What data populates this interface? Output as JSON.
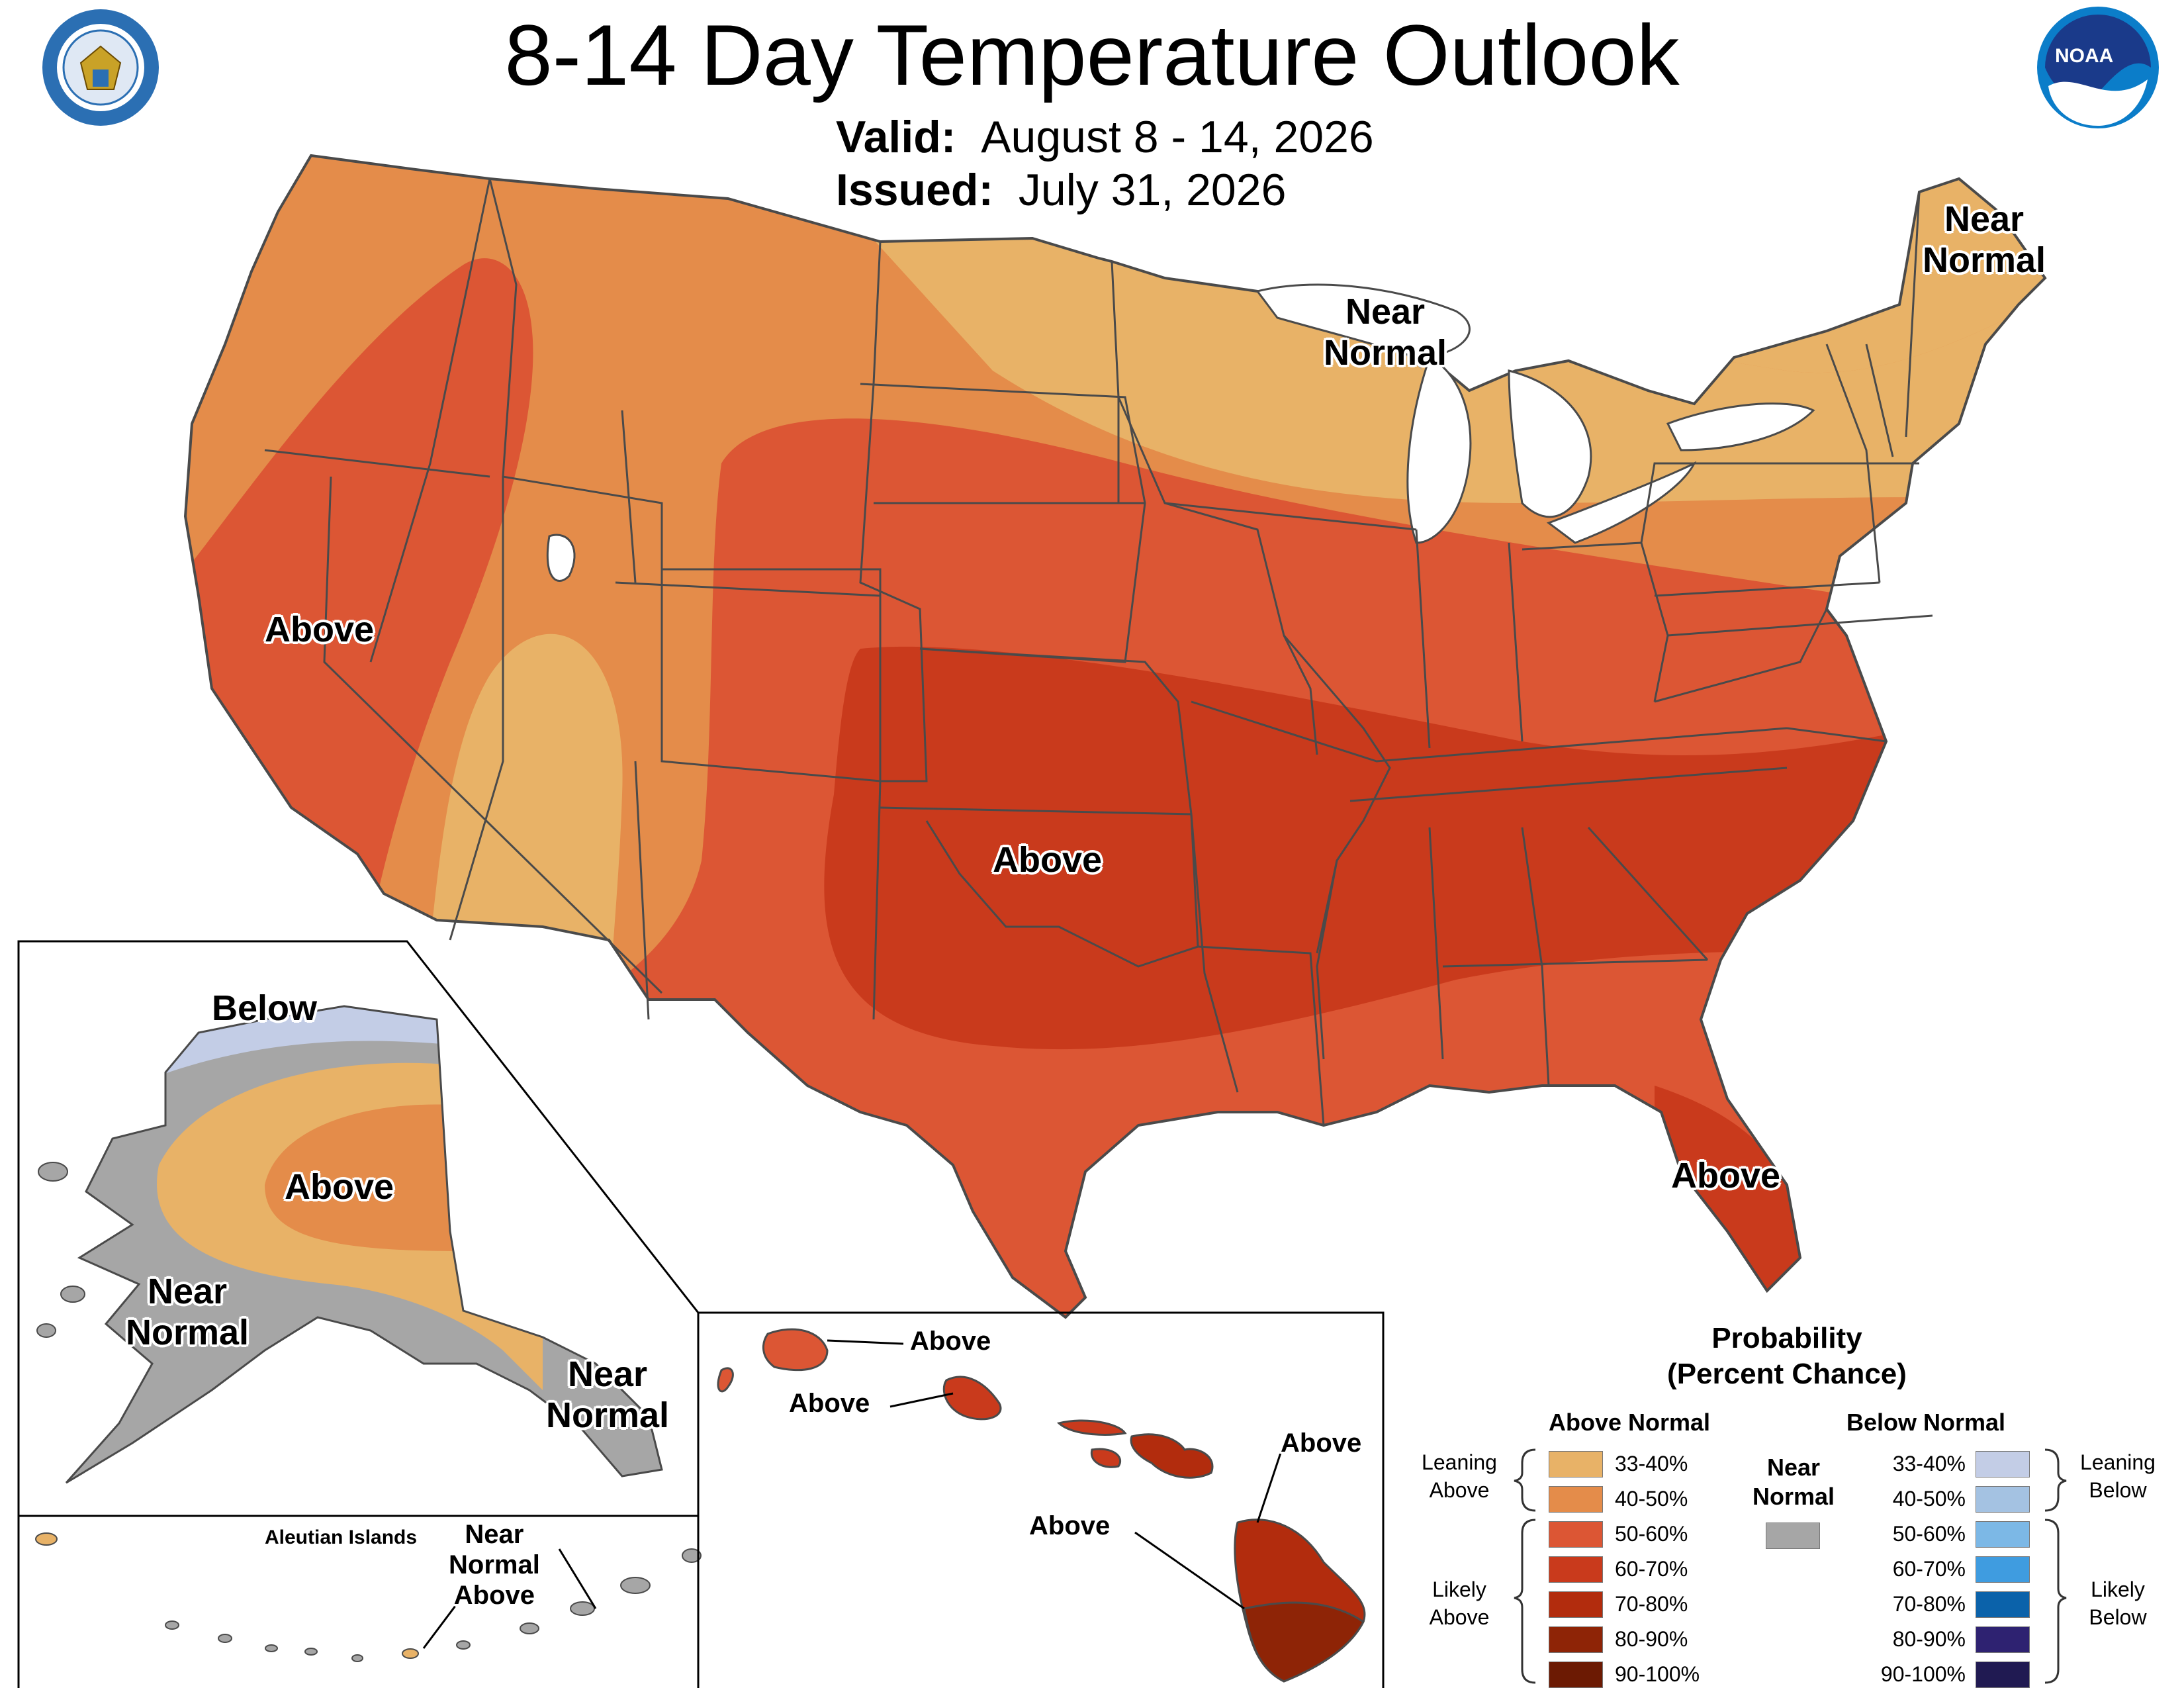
{
  "title": "8-14 Day Temperature Outlook",
  "valid_label": "Valid:",
  "valid_dates": "August 8 - 14, 2026",
  "issued_label": "Issued:",
  "issued_date": "July 31, 2026",
  "logos": {
    "left": "department-of-commerce-seal",
    "right": "noaa-logo",
    "noaa_text": "NOAA"
  },
  "map_labels": {
    "west_above": "Above",
    "central_above": "Above",
    "florida_above": "Above",
    "upper_midwest_near_normal": [
      "Near",
      "Normal"
    ],
    "northeast_near_normal": [
      "Near",
      "Normal"
    ],
    "alaska_below": "Below",
    "alaska_above": "Above",
    "alaska_west_near_normal": [
      "Near",
      "Normal"
    ],
    "alaska_se_near_normal": [
      "Near",
      "Normal"
    ],
    "aleutian_title": "Aleutian Islands",
    "aleutian_near_normal_above": [
      "Near",
      "Normal",
      "Above"
    ],
    "hawaii_kauai": "Above",
    "hawaii_oahu": "Above",
    "hawaii_maui": "Above",
    "hawaii_big_island": "Above"
  },
  "legend": {
    "title": [
      "Probability",
      "(Percent Chance)"
    ],
    "above_header": "Above Normal",
    "below_header": "Below Normal",
    "near_header": [
      "Near",
      "Normal"
    ],
    "near_color": "#a6a6a6",
    "leaning_above": [
      "Leaning",
      "Above"
    ],
    "likely_above": [
      "Likely",
      "Above"
    ],
    "leaning_below": [
      "Leaning",
      "Below"
    ],
    "likely_below": [
      "Likely",
      "Below"
    ],
    "above": [
      {
        "label": "33-40%",
        "color": "#e8b267"
      },
      {
        "label": "40-50%",
        "color": "#e48c4a"
      },
      {
        "label": "50-60%",
        "color": "#dc5634"
      },
      {
        "label": "60-70%",
        "color": "#c93a1c"
      },
      {
        "label": "70-80%",
        "color": "#b22c0d"
      },
      {
        "label": "80-90%",
        "color": "#8e2406"
      },
      {
        "label": "90-100%",
        "color": "#6c1a03"
      }
    ],
    "below": [
      {
        "label": "33-40%",
        "color": "#c3cde6"
      },
      {
        "label": "40-50%",
        "color": "#a4c2e2"
      },
      {
        "label": "50-60%",
        "color": "#7cb8e6"
      },
      {
        "label": "60-70%",
        "color": "#3f9ce0"
      },
      {
        "label": "70-80%",
        "color": "#0b62aa"
      },
      {
        "label": "80-90%",
        "color": "#2e2271"
      },
      {
        "label": "90-100%",
        "color": "#201a52"
      }
    ]
  }
}
